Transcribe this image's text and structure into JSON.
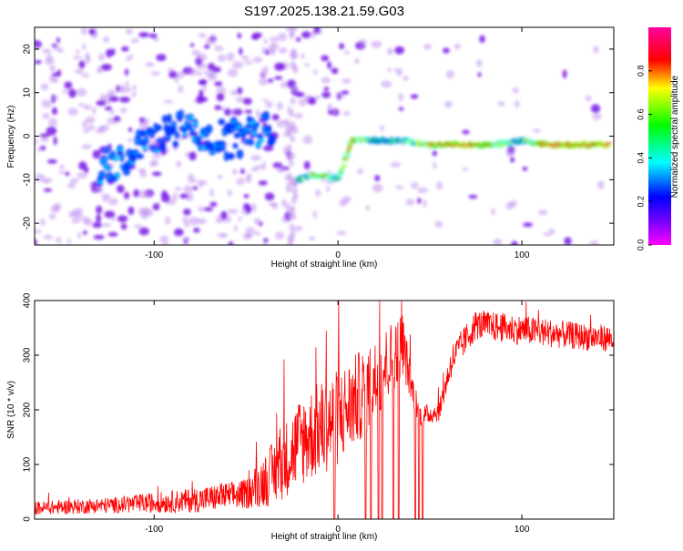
{
  "title": "S197.2025.138.21.59.G03",
  "chart_data": [
    {
      "type": "heatmap",
      "xlabel": "Height of straight line (km)",
      "ylabel": "Frequency (Hz)",
      "xlim": [
        -165,
        150
      ],
      "ylim": [
        -25,
        25
      ],
      "x_ticks": [
        -100,
        0,
        100
      ],
      "y_ticks": [
        20,
        10,
        0,
        -10,
        -20
      ],
      "colorbar": {
        "label": "Normalized spectral amplitude",
        "range": [
          0,
          1
        ],
        "ticks": [
          "0.0",
          "0.2",
          "0.4",
          "0.6",
          "0.8"
        ],
        "colormap": [
          "#ff00ff",
          "#ff0000",
          "#ffff00",
          "#00ff00",
          "#00ffff",
          "#0000ff",
          "#ff00ff"
        ]
      },
      "ridge": [
        {
          "x": -130,
          "y": -7,
          "amplitude": 0.35
        },
        {
          "x": -120,
          "y": -6,
          "amplitude": 0.35
        },
        {
          "x": -110,
          "y": -3,
          "amplitude": 0.3
        },
        {
          "x": -100,
          "y": -1,
          "amplitude": 0.3
        },
        {
          "x": -90,
          "y": 1,
          "amplitude": 0.3
        },
        {
          "x": -80,
          "y": 2,
          "amplitude": 0.35
        },
        {
          "x": -70,
          "y": 0,
          "amplitude": 0.3
        },
        {
          "x": -60,
          "y": -1,
          "amplitude": 0.3
        },
        {
          "x": -50,
          "y": 0,
          "amplitude": 0.3
        },
        {
          "x": -40,
          "y": 2,
          "amplitude": 0.35
        },
        {
          "x": -35,
          "y": -5,
          "amplitude": 0.3
        },
        {
          "x": -22,
          "y": -10,
          "amplitude": 0.6
        },
        {
          "x": -15,
          "y": -9,
          "amplitude": 0.7
        },
        {
          "x": -8,
          "y": -9,
          "amplitude": 0.8
        },
        {
          "x": 0,
          "y": -10,
          "amplitude": 0.6
        },
        {
          "x": 8,
          "y": -1,
          "amplitude": 0.85
        },
        {
          "x": 20,
          "y": -1,
          "amplitude": 0.55
        },
        {
          "x": 35,
          "y": -1,
          "amplitude": 0.6
        },
        {
          "x": 50,
          "y": -2,
          "amplitude": 0.8
        },
        {
          "x": 70,
          "y": -2,
          "amplitude": 0.95
        },
        {
          "x": 85,
          "y": -2,
          "amplitude": 0.75
        },
        {
          "x": 100,
          "y": -1,
          "amplitude": 0.6
        },
        {
          "x": 115,
          "y": -2,
          "amplitude": 0.9
        },
        {
          "x": 135,
          "y": -2,
          "amplitude": 0.95
        },
        {
          "x": 148,
          "y": -2,
          "amplitude": 0.9
        }
      ]
    },
    {
      "type": "line",
      "xlabel": "Height of straight line (km)",
      "ylabel": "SNR (10 * v/v)",
      "xlim": [
        -165,
        150
      ],
      "ylim": [
        0,
        400
      ],
      "x_ticks": [
        -100,
        0,
        100
      ],
      "y_ticks": [
        0,
        100,
        200,
        300,
        400
      ],
      "color": "#ff0000",
      "envelope": [
        {
          "x": -165,
          "base": 15,
          "amp": 25
        },
        {
          "x": -120,
          "base": 20,
          "amp": 30
        },
        {
          "x": -80,
          "base": 25,
          "amp": 45
        },
        {
          "x": -50,
          "base": 35,
          "amp": 55
        },
        {
          "x": -35,
          "base": 60,
          "amp": 120
        },
        {
          "x": -20,
          "base": 110,
          "amp": 170
        },
        {
          "x": 0,
          "base": 150,
          "amp": 180
        },
        {
          "x": 20,
          "base": 220,
          "amp": 160
        },
        {
          "x": 35,
          "base": 300,
          "amp": 120
        },
        {
          "x": 40,
          "base": 230,
          "amp": 60
        },
        {
          "x": 45,
          "base": 180,
          "amp": 40
        },
        {
          "x": 55,
          "base": 190,
          "amp": 35
        },
        {
          "x": 62,
          "base": 280,
          "amp": 60
        },
        {
          "x": 75,
          "base": 345,
          "amp": 55
        },
        {
          "x": 100,
          "base": 335,
          "amp": 55
        },
        {
          "x": 130,
          "base": 325,
          "amp": 50
        },
        {
          "x": 150,
          "base": 320,
          "amp": 50
        }
      ],
      "dropouts": [
        -2,
        15,
        18,
        22,
        24,
        30,
        33,
        42,
        44,
        46
      ]
    }
  ]
}
